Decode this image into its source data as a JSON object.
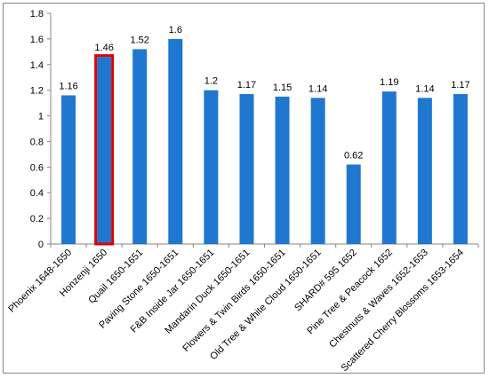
{
  "chart_data": {
    "type": "bar",
    "title": "",
    "xlabel": "",
    "ylabel": "",
    "ylim": [
      0,
      1.8
    ],
    "yticks": [
      0,
      0.2,
      0.4,
      0.6,
      0.8,
      1,
      1.2,
      1.4,
      1.6,
      1.8
    ],
    "grid": false,
    "legend": "none",
    "categories": [
      "Phoenix 1648-1650",
      "Honzenji 1650",
      "Quail 1650-1651",
      "Paving Stone 1650-1651",
      "F&B Inside Jar 1650-1651",
      "Mandarin Duck 1650-1651",
      "Flowers & Twin Birds 1650-1651",
      "Old Tree & White Cloud 1650-1651",
      "SHARD# 595  1652",
      "Pine Tree & Peacock 1652",
      "Chestnuts & Waves 1652-1653",
      "Scattered Cherry Blossoms 1653-1654"
    ],
    "values": [
      1.16,
      1.46,
      1.52,
      1.6,
      1.2,
      1.17,
      1.15,
      1.14,
      0.62,
      1.19,
      1.14,
      1.17
    ],
    "data_labels": [
      "1.16",
      "1.46",
      "1.52",
      "1.6",
      "1.2",
      "1.17",
      "1.15",
      "1.14",
      "0.62",
      "1.19",
      "1.14",
      "1.17"
    ],
    "highlighted_category": "Honzenji 1650",
    "bar_color": "#1f77d0",
    "highlight_color": "#e00000"
  }
}
